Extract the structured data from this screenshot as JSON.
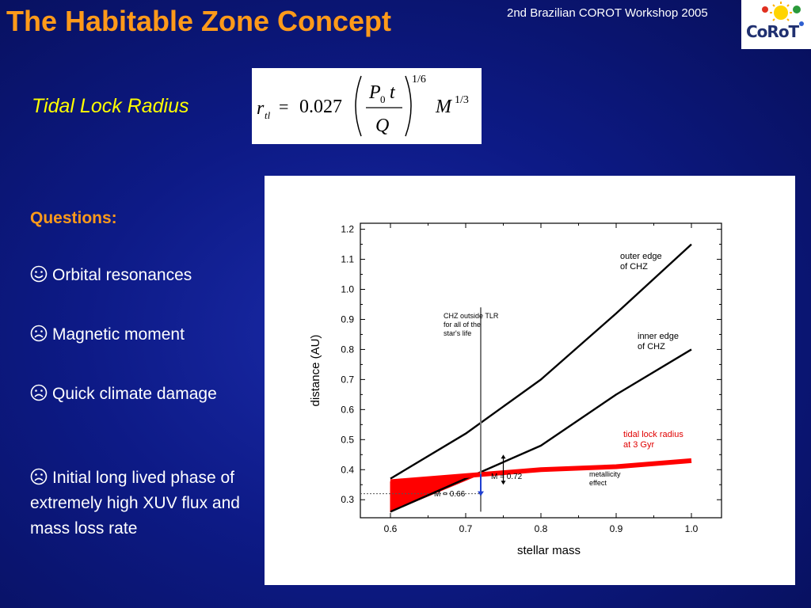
{
  "slide": {
    "title": "The Habitable Zone Concept",
    "workshop": "2nd Brazilian COROT Workshop 2005",
    "logo_text": "CoRoT"
  },
  "tidal": {
    "label": "Tidal Lock Radius",
    "formula": {
      "lhs": "r",
      "lhs_sub": "tl",
      "equals": "=",
      "coefficient": "0.027",
      "numerator": "P",
      "numerator_sub": "0",
      "numerator_t": "t",
      "denominator": "Q",
      "outer_exponent": "1/6",
      "mass_symbol": "M",
      "mass_exponent": "1/3"
    }
  },
  "questions": {
    "heading": "Questions:",
    "items": [
      {
        "icon": "smiley-happy-icon",
        "text": "Orbital resonances"
      },
      {
        "icon": "smiley-sad-icon",
        "text": "Magnetic moment"
      },
      {
        "icon": "smiley-sad-icon",
        "text": "Quick climate damage"
      },
      {
        "icon": "smiley-sad-icon",
        "text": "Initial long lived phase of extremely high XUV flux and mass loss rate"
      }
    ]
  },
  "chart_data": {
    "type": "line",
    "xlabel": "stellar mass",
    "ylabel": "distance (AU)",
    "xlim": [
      0.56,
      1.04
    ],
    "ylim": [
      0.24,
      1.22
    ],
    "x_ticks": [
      0.6,
      0.7,
      0.8,
      0.9,
      1.0
    ],
    "x_tick_labels": [
      "0.6",
      "0.7",
      "0.8",
      "0.9",
      "1.0"
    ],
    "y_ticks": [
      0.3,
      0.4,
      0.5,
      0.6,
      0.7,
      0.8,
      0.9,
      1.0,
      1.1,
      1.2
    ],
    "y_tick_labels": [
      "0.3",
      "0.4",
      "0.5",
      "0.6",
      "0.7",
      "0.8",
      "0.9",
      "1.0",
      "1.1",
      "1.2"
    ],
    "series": [
      {
        "name": "outer edge of CHZ",
        "color": "#000000",
        "x": [
          0.6,
          0.7,
          0.8,
          0.9,
          1.0
        ],
        "y": [
          0.37,
          0.52,
          0.7,
          0.92,
          1.15
        ]
      },
      {
        "name": "inner edge of CHZ",
        "color": "#000000",
        "x": [
          0.6,
          0.7,
          0.8,
          0.9,
          1.0
        ],
        "y": [
          0.26,
          0.37,
          0.48,
          0.65,
          0.8
        ]
      },
      {
        "name": "tidal lock radius at 3 Gyr",
        "color": "#ff0000",
        "x": [
          0.6,
          0.7,
          0.8,
          0.9,
          1.0
        ],
        "y": [
          0.36,
          0.38,
          0.4,
          0.41,
          0.43
        ]
      }
    ],
    "shaded_region": {
      "color": "#ff0000",
      "x": [
        0.6,
        0.72
      ],
      "upper": [
        0.36,
        0.385
      ],
      "lower": [
        0.26,
        0.385
      ]
    },
    "vertical_line": {
      "x": 0.72,
      "y_range": [
        0.26,
        0.94
      ],
      "color": "#7a7a7a"
    },
    "dotted_line": {
      "y": 0.32,
      "x_range": [
        0.56,
        0.72
      ]
    },
    "annotations": {
      "outer_edge": [
        "outer edge",
        "of CHZ"
      ],
      "inner_edge": [
        "inner edge",
        "of CHZ"
      ],
      "tidal": [
        "tidal lock radius",
        "at 3 Gyr"
      ],
      "chz_outside": [
        "CHZ outside TLR",
        "for all of the",
        "star's life"
      ],
      "metallicity": [
        "metallicity",
        "effect"
      ],
      "m072": "M = 0.72",
      "m066": "M = 0.66"
    },
    "grid": false
  }
}
